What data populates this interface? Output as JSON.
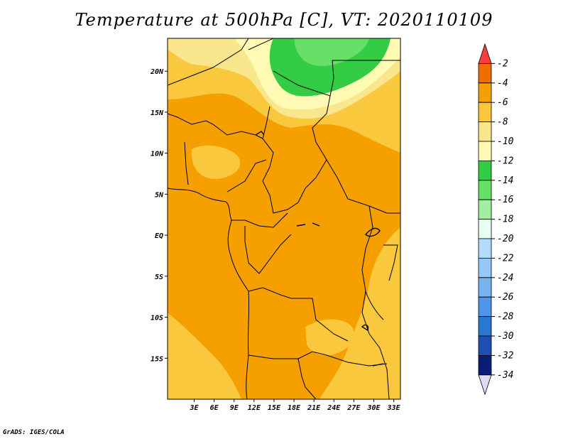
{
  "title": "Temperature at 500hPa [C], VT: 2020110109",
  "footer": "GrADS: IGES/COLA",
  "map": {
    "lon_range": [
      -1,
      34
    ],
    "lat_range": [
      -20,
      24
    ],
    "x_ticks": [
      "3E",
      "6E",
      "9E",
      "12E",
      "15E",
      "18E",
      "21E",
      "24E",
      "27E",
      "30E",
      "33E"
    ],
    "x_tick_values": [
      3,
      6,
      9,
      12,
      15,
      18,
      21,
      24,
      27,
      30,
      33
    ],
    "y_ticks": [
      "20N",
      "15N",
      "10N",
      "5N",
      "EQ",
      "5S",
      "10S",
      "15S"
    ],
    "y_tick_values": [
      20,
      15,
      10,
      5,
      0,
      -5,
      -10,
      -15
    ]
  },
  "colorbar": {
    "labels": [
      "-2",
      "-4",
      "-6",
      "-8",
      "-10",
      "-12",
      "-14",
      "-16",
      "-18",
      "-20",
      "-22",
      "-24",
      "-26",
      "-28",
      "-30",
      "-32",
      "-34"
    ],
    "colors": [
      "#fa3c3c",
      "#f06e00",
      "#f5a000",
      "#fac83c",
      "#fae68c",
      "#fffab4",
      "#33cc44",
      "#66e066",
      "#a0f0a0",
      "#e6fff0",
      "#b4dcfa",
      "#96c8f5",
      "#78b4f0",
      "#5096e6",
      "#2878d2",
      "#1e50b4",
      "#0a1e78",
      "#dcdcf5"
    ]
  }
}
